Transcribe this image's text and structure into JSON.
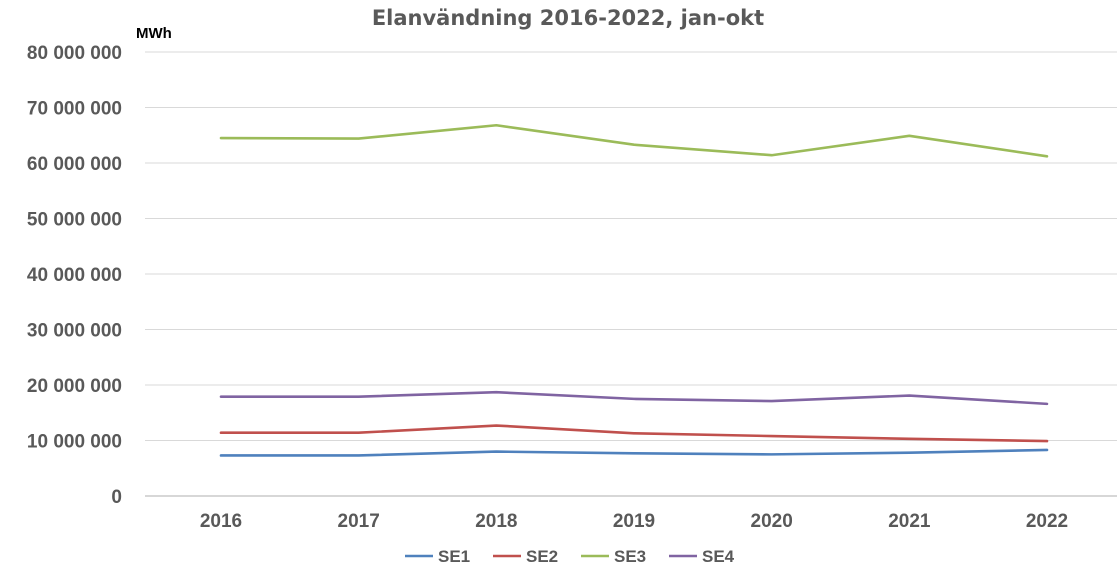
{
  "chart_data": {
    "type": "line",
    "title": "Elanvändning 2016-2022, jan-okt",
    "unit_label": "MWh",
    "xlabel": "",
    "ylabel": "",
    "categories": [
      "2016",
      "2017",
      "2018",
      "2019",
      "2020",
      "2021",
      "2022"
    ],
    "ylim": [
      0,
      80000000
    ],
    "yticks": [
      0,
      10000000,
      20000000,
      30000000,
      40000000,
      50000000,
      60000000,
      70000000,
      80000000
    ],
    "ytick_labels": [
      "0",
      "10 000 000",
      "20 000 000",
      "30 000 000",
      "40 000 000",
      "50 000 000",
      "60 000 000",
      "70 000 000",
      "80 000 000"
    ],
    "grid": true,
    "legend_position": "bottom",
    "series": [
      {
        "name": "SE1",
        "color": "#4F81BD",
        "values": [
          7300000,
          7300000,
          8000000,
          7700000,
          7500000,
          7800000,
          8300000
        ]
      },
      {
        "name": "SE2",
        "color": "#C0504D",
        "values": [
          11400000,
          11400000,
          12700000,
          11300000,
          10800000,
          10300000,
          9900000
        ]
      },
      {
        "name": "SE3",
        "color": "#9BBB59",
        "values": [
          64500000,
          64400000,
          66800000,
          63300000,
          61400000,
          64900000,
          61200000
        ]
      },
      {
        "name": "SE4",
        "color": "#8064A2",
        "values": [
          17900000,
          17900000,
          18700000,
          17500000,
          17100000,
          18100000,
          16600000
        ]
      }
    ]
  }
}
